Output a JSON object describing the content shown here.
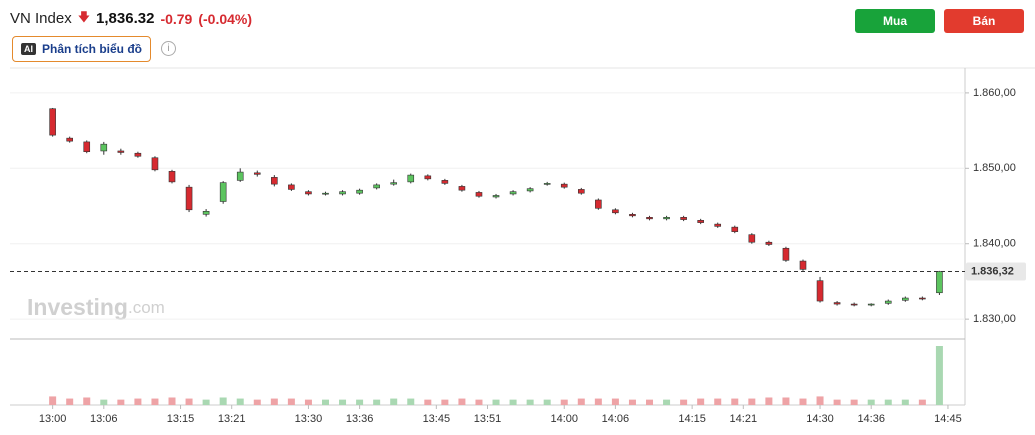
{
  "header": {
    "symbol": "VN Index",
    "price": "1,836.32",
    "change": "-0.79",
    "change_pct": "(-0.04%)",
    "ai_badge": "AI",
    "ai_button": "Phân tích biểu đồ",
    "buy": "Mua",
    "sell": "Bán"
  },
  "watermark": {
    "brand": "Investing",
    "suffix": ".com"
  },
  "chart_data": {
    "type": "candlestick",
    "x": [
      "13:00",
      "13:02",
      "13:04",
      "13:06",
      "13:08",
      "13:10",
      "13:12",
      "13:14",
      "13:16",
      "13:18",
      "13:20",
      "13:22",
      "13:24",
      "13:26",
      "13:28",
      "13:30",
      "13:32",
      "13:34",
      "13:36",
      "13:38",
      "13:40",
      "13:42",
      "13:44",
      "13:46",
      "13:48",
      "13:50",
      "13:52",
      "13:54",
      "13:56",
      "13:58",
      "14:00",
      "14:02",
      "14:04",
      "14:06",
      "14:08",
      "14:10",
      "14:12",
      "14:14",
      "14:16",
      "14:18",
      "14:20",
      "14:22",
      "14:24",
      "14:26",
      "14:28",
      "14:30",
      "14:32",
      "14:34",
      "14:36",
      "14:38",
      "14:40",
      "14:42",
      "14:44"
    ],
    "open": [
      1857.9,
      1854.0,
      1853.5,
      1852.3,
      1852.3,
      1852.0,
      1851.4,
      1849.6,
      1847.5,
      1843.9,
      1845.6,
      1848.4,
      1849.4,
      1848.8,
      1847.8,
      1846.9,
      1846.6,
      1846.6,
      1846.7,
      1847.4,
      1847.9,
      1848.2,
      1849.0,
      1848.4,
      1847.6,
      1846.8,
      1846.2,
      1846.6,
      1847.0,
      1847.9,
      1847.9,
      1847.2,
      1845.8,
      1844.5,
      1843.9,
      1843.5,
      1843.3,
      1843.5,
      1843.1,
      1842.6,
      1842.2,
      1841.2,
      1840.2,
      1839.4,
      1837.7,
      1835.1,
      1832.2,
      1832.0,
      1831.9,
      1832.1,
      1832.5,
      1832.8,
      1833.5
    ],
    "high": [
      1858.0,
      1854.2,
      1853.7,
      1853.5,
      1852.6,
      1852.2,
      1851.6,
      1849.8,
      1847.8,
      1844.6,
      1848.3,
      1850.0,
      1849.7,
      1849.1,
      1848.0,
      1847.1,
      1846.9,
      1847.1,
      1847.3,
      1848.0,
      1848.5,
      1849.3,
      1849.2,
      1848.6,
      1847.8,
      1847.0,
      1846.6,
      1847.1,
      1847.5,
      1848.2,
      1848.1,
      1847.4,
      1846.0,
      1844.7,
      1844.1,
      1843.7,
      1843.7,
      1843.7,
      1843.3,
      1842.8,
      1842.4,
      1841.4,
      1840.4,
      1839.6,
      1837.9,
      1835.6,
      1832.4,
      1832.2,
      1832.1,
      1832.6,
      1833.0,
      1833.0,
      1836.4
    ],
    "low": [
      1854.2,
      1853.4,
      1852.0,
      1851.8,
      1851.8,
      1851.4,
      1849.6,
      1848.0,
      1844.2,
      1843.6,
      1845.3,
      1848.2,
      1848.9,
      1847.6,
      1847.0,
      1846.4,
      1846.4,
      1846.4,
      1846.5,
      1847.2,
      1847.7,
      1848.0,
      1848.4,
      1847.8,
      1846.9,
      1846.1,
      1846.0,
      1846.4,
      1846.8,
      1847.7,
      1847.3,
      1846.5,
      1844.5,
      1843.9,
      1843.5,
      1843.1,
      1843.1,
      1843.0,
      1842.6,
      1842.1,
      1841.4,
      1840.0,
      1839.7,
      1837.6,
      1836.4,
      1832.2,
      1831.8,
      1831.7,
      1831.7,
      1831.9,
      1832.3,
      1832.5,
      1833.2
    ],
    "close": [
      1854.4,
      1853.6,
      1852.2,
      1853.2,
      1852.1,
      1851.6,
      1849.8,
      1848.2,
      1844.5,
      1844.3,
      1848.1,
      1849.5,
      1849.2,
      1847.9,
      1847.2,
      1846.6,
      1846.7,
      1846.9,
      1847.1,
      1847.8,
      1848.1,
      1849.1,
      1848.6,
      1848.0,
      1847.1,
      1846.3,
      1846.4,
      1846.9,
      1847.3,
      1848.0,
      1847.5,
      1846.7,
      1844.7,
      1844.1,
      1843.7,
      1843.3,
      1843.5,
      1843.2,
      1842.8,
      1842.3,
      1841.6,
      1840.2,
      1839.9,
      1837.8,
      1836.6,
      1832.4,
      1832.0,
      1831.9,
      1832.0,
      1832.4,
      1832.8,
      1832.7,
      1836.32
    ],
    "volume": [
      8,
      6,
      7,
      5,
      5,
      6,
      6,
      7,
      6,
      5,
      7,
      6,
      5,
      6,
      6,
      5,
      5,
      5,
      5,
      5,
      6,
      6,
      5,
      5,
      6,
      5,
      5,
      5,
      5,
      5,
      5,
      6,
      6,
      6,
      5,
      5,
      5,
      5,
      6,
      6,
      6,
      6,
      7,
      7,
      6,
      8,
      5,
      5,
      5,
      5,
      5,
      5,
      55
    ],
    "up_color": "#5cc45f",
    "down_color": "#d62a30",
    "up_volume_color": "#a9d8b2",
    "down_volume_color": "#eea3a6",
    "xlim": [
      "12:55",
      "14:47"
    ],
    "xticks": [
      "13:00",
      "13:06",
      "13:15",
      "13:21",
      "13:30",
      "13:36",
      "13:45",
      "13:51",
      "14:00",
      "14:06",
      "14:15",
      "14:21",
      "14:30",
      "14:36",
      "14:45"
    ],
    "ylim": [
      1827.5,
      1863.3
    ],
    "yticks": [
      {
        "value": 1830,
        "label": "1.830,00"
      },
      {
        "value": 1840,
        "label": "1.840,00"
      },
      {
        "value": 1850,
        "label": "1.850,00"
      },
      {
        "value": 1860,
        "label": "1.860,00"
      }
    ],
    "last_price": {
      "value": 1836.32,
      "label": "1.836,32"
    },
    "grid": true
  }
}
